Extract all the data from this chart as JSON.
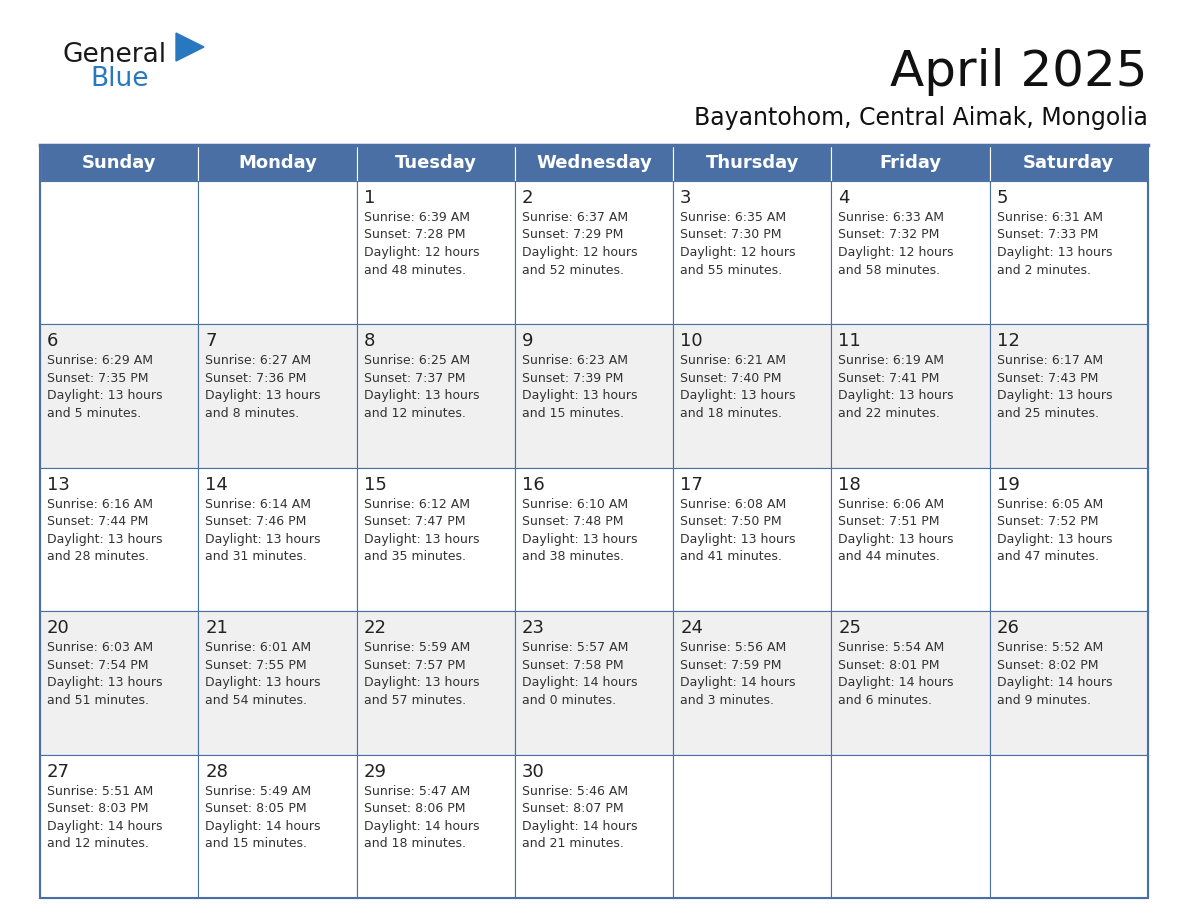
{
  "title": "April 2025",
  "subtitle": "Bayantohom, Central Aimak, Mongolia",
  "header_color": "#4a6fa5",
  "header_text_color": "#FFFFFF",
  "days_of_week": [
    "Sunday",
    "Monday",
    "Tuesday",
    "Wednesday",
    "Thursday",
    "Friday",
    "Saturday"
  ],
  "weeks": [
    [
      {
        "day": "",
        "info": ""
      },
      {
        "day": "",
        "info": ""
      },
      {
        "day": "1",
        "info": "Sunrise: 6:39 AM\nSunset: 7:28 PM\nDaylight: 12 hours\nand 48 minutes."
      },
      {
        "day": "2",
        "info": "Sunrise: 6:37 AM\nSunset: 7:29 PM\nDaylight: 12 hours\nand 52 minutes."
      },
      {
        "day": "3",
        "info": "Sunrise: 6:35 AM\nSunset: 7:30 PM\nDaylight: 12 hours\nand 55 minutes."
      },
      {
        "day": "4",
        "info": "Sunrise: 6:33 AM\nSunset: 7:32 PM\nDaylight: 12 hours\nand 58 minutes."
      },
      {
        "day": "5",
        "info": "Sunrise: 6:31 AM\nSunset: 7:33 PM\nDaylight: 13 hours\nand 2 minutes."
      }
    ],
    [
      {
        "day": "6",
        "info": "Sunrise: 6:29 AM\nSunset: 7:35 PM\nDaylight: 13 hours\nand 5 minutes."
      },
      {
        "day": "7",
        "info": "Sunrise: 6:27 AM\nSunset: 7:36 PM\nDaylight: 13 hours\nand 8 minutes."
      },
      {
        "day": "8",
        "info": "Sunrise: 6:25 AM\nSunset: 7:37 PM\nDaylight: 13 hours\nand 12 minutes."
      },
      {
        "day": "9",
        "info": "Sunrise: 6:23 AM\nSunset: 7:39 PM\nDaylight: 13 hours\nand 15 minutes."
      },
      {
        "day": "10",
        "info": "Sunrise: 6:21 AM\nSunset: 7:40 PM\nDaylight: 13 hours\nand 18 minutes."
      },
      {
        "day": "11",
        "info": "Sunrise: 6:19 AM\nSunset: 7:41 PM\nDaylight: 13 hours\nand 22 minutes."
      },
      {
        "day": "12",
        "info": "Sunrise: 6:17 AM\nSunset: 7:43 PM\nDaylight: 13 hours\nand 25 minutes."
      }
    ],
    [
      {
        "day": "13",
        "info": "Sunrise: 6:16 AM\nSunset: 7:44 PM\nDaylight: 13 hours\nand 28 minutes."
      },
      {
        "day": "14",
        "info": "Sunrise: 6:14 AM\nSunset: 7:46 PM\nDaylight: 13 hours\nand 31 minutes."
      },
      {
        "day": "15",
        "info": "Sunrise: 6:12 AM\nSunset: 7:47 PM\nDaylight: 13 hours\nand 35 minutes."
      },
      {
        "day": "16",
        "info": "Sunrise: 6:10 AM\nSunset: 7:48 PM\nDaylight: 13 hours\nand 38 minutes."
      },
      {
        "day": "17",
        "info": "Sunrise: 6:08 AM\nSunset: 7:50 PM\nDaylight: 13 hours\nand 41 minutes."
      },
      {
        "day": "18",
        "info": "Sunrise: 6:06 AM\nSunset: 7:51 PM\nDaylight: 13 hours\nand 44 minutes."
      },
      {
        "day": "19",
        "info": "Sunrise: 6:05 AM\nSunset: 7:52 PM\nDaylight: 13 hours\nand 47 minutes."
      }
    ],
    [
      {
        "day": "20",
        "info": "Sunrise: 6:03 AM\nSunset: 7:54 PM\nDaylight: 13 hours\nand 51 minutes."
      },
      {
        "day": "21",
        "info": "Sunrise: 6:01 AM\nSunset: 7:55 PM\nDaylight: 13 hours\nand 54 minutes."
      },
      {
        "day": "22",
        "info": "Sunrise: 5:59 AM\nSunset: 7:57 PM\nDaylight: 13 hours\nand 57 minutes."
      },
      {
        "day": "23",
        "info": "Sunrise: 5:57 AM\nSunset: 7:58 PM\nDaylight: 14 hours\nand 0 minutes."
      },
      {
        "day": "24",
        "info": "Sunrise: 5:56 AM\nSunset: 7:59 PM\nDaylight: 14 hours\nand 3 minutes."
      },
      {
        "day": "25",
        "info": "Sunrise: 5:54 AM\nSunset: 8:01 PM\nDaylight: 14 hours\nand 6 minutes."
      },
      {
        "day": "26",
        "info": "Sunrise: 5:52 AM\nSunset: 8:02 PM\nDaylight: 14 hours\nand 9 minutes."
      }
    ],
    [
      {
        "day": "27",
        "info": "Sunrise: 5:51 AM\nSunset: 8:03 PM\nDaylight: 14 hours\nand 12 minutes."
      },
      {
        "day": "28",
        "info": "Sunrise: 5:49 AM\nSunset: 8:05 PM\nDaylight: 14 hours\nand 15 minutes."
      },
      {
        "day": "29",
        "info": "Sunrise: 5:47 AM\nSunset: 8:06 PM\nDaylight: 14 hours\nand 18 minutes."
      },
      {
        "day": "30",
        "info": "Sunrise: 5:46 AM\nSunset: 8:07 PM\nDaylight: 14 hours\nand 21 minutes."
      },
      {
        "day": "",
        "info": ""
      },
      {
        "day": "",
        "info": ""
      },
      {
        "day": "",
        "info": ""
      }
    ]
  ],
  "logo_general_color": "#1a1a1a",
  "logo_blue_color": "#2878C0",
  "cell_bg_white": "#FFFFFF",
  "cell_bg_gray": "#f0f0f0",
  "grid_line_color": "#4a6fa5",
  "day_num_color": "#222222",
  "info_text_color": "#333333",
  "background_color": "#FFFFFF",
  "title_fontsize": 36,
  "subtitle_fontsize": 17,
  "dow_fontsize": 13,
  "day_num_fontsize": 13,
  "info_fontsize": 9
}
